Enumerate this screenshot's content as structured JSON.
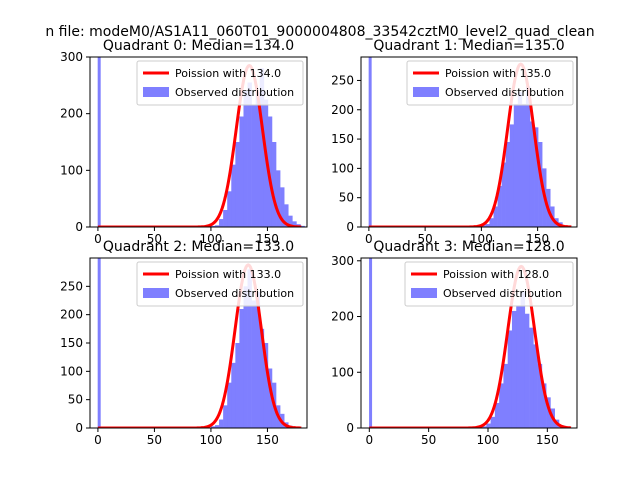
{
  "figure": {
    "suptitle": "n file: modeM0/AS1A11_060T01_9000004808_33542cztM0_level2_quad_clean"
  },
  "colors": {
    "poisson": "#ff0000",
    "observed": "#7f7fff",
    "axis": "#000000"
  },
  "chart_data": [
    {
      "type": "bar",
      "title": "Quadrant 0: Median=134.0",
      "xlim": [
        -7,
        185
      ],
      "ylim": [
        0,
        300
      ],
      "xticks": [
        0,
        50,
        100,
        150
      ],
      "yticks": [
        0,
        100,
        200,
        300
      ],
      "legend": [
        "Poission with 134.0",
        "Observed distribution"
      ],
      "median": 134.0,
      "peak": 285,
      "sigma": 11.6,
      "zero_bar": 300,
      "hist": {
        "bin_start": 100,
        "bin_width": 3.6,
        "values": [
          2,
          3,
          14,
          30,
          63,
          110,
          150,
          195,
          240,
          255,
          215,
          238,
          280,
          225,
          195,
          150,
          100,
          70,
          40,
          20,
          10,
          5,
          2
        ]
      }
    },
    {
      "type": "bar",
      "title": "Quadrant 1: Median=135.0",
      "xlim": [
        -7,
        185
      ],
      "ylim": [
        0,
        290
      ],
      "xticks": [
        0,
        50,
        100,
        150
      ],
      "yticks": [
        0,
        50,
        100,
        150,
        200,
        250
      ],
      "legend": [
        "Poission with 135.0",
        "Observed distribution"
      ],
      "median": 135.0,
      "peak": 278,
      "sigma": 11.6,
      "zero_bar": 290,
      "hist": {
        "bin_start": 100,
        "bin_width": 3.6,
        "values": [
          3,
          5,
          15,
          35,
          70,
          110,
          145,
          175,
          210,
          230,
          210,
          240,
          180,
          170,
          145,
          100,
          65,
          35,
          15,
          8,
          3
        ]
      }
    },
    {
      "type": "bar",
      "title": "Quadrant 2: Median=133.0",
      "xlim": [
        -7,
        185
      ],
      "ylim": [
        0,
        300
      ],
      "xticks": [
        0,
        50,
        100,
        150
      ],
      "yticks": [
        0,
        50,
        100,
        150,
        200,
        250
      ],
      "legend": [
        "Poission with 133.0",
        "Observed distribution"
      ],
      "median": 133.0,
      "peak": 288,
      "sigma": 11.6,
      "zero_bar": 300,
      "hist": {
        "bin_start": 100,
        "bin_width": 3.6,
        "values": [
          3,
          5,
          15,
          40,
          80,
          115,
          150,
          210,
          250,
          280,
          225,
          240,
          175,
          150,
          105,
          80,
          40,
          25,
          10,
          4,
          2
        ]
      }
    },
    {
      "type": "bar",
      "title": "Quadrant 3: Median=128.0",
      "xlim": [
        -7,
        175
      ],
      "ylim": [
        0,
        305
      ],
      "xticks": [
        0,
        50,
        100,
        150
      ],
      "yticks": [
        0,
        100,
        200,
        300
      ],
      "legend": [
        "Poission with 128.0",
        "Observed distribution"
      ],
      "median": 128.0,
      "peak": 290,
      "sigma": 11.3,
      "zero_bar": 305,
      "hist": {
        "bin_start": 95,
        "bin_width": 3.6,
        "values": [
          3,
          8,
          20,
          45,
          80,
          115,
          175,
          210,
          220,
          245,
          205,
          180,
          150,
          115,
          80,
          55,
          35,
          15,
          5,
          2
        ]
      }
    }
  ]
}
